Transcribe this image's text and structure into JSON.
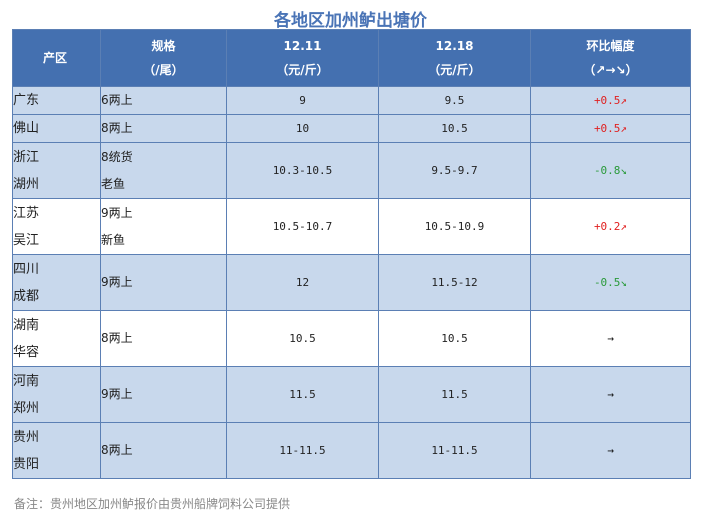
{
  "title": "各地区加州鲈出塘价",
  "header": {
    "region": "产区",
    "spec_line1": "规格",
    "spec_line2": "（/尾）",
    "date1_line1": "12.11",
    "date1_line2": "（元/斤）",
    "date2_line1": "12.18",
    "date2_line2": "（元/斤）",
    "change_line1": "环比幅度",
    "change_line2": "（↗→↘）"
  },
  "rows": [
    {
      "r1": "广东",
      "spec": "6两上",
      "p1": "9",
      "p2": "9.5",
      "chg": "+0.5↗"
    },
    {
      "r2": "佛山",
      "spec": "8两上",
      "p1": "10",
      "p2": "10.5",
      "chg": "+0.5↗"
    },
    {
      "r1": "浙江",
      "r2": "湖州",
      "spec1": "8统货",
      "spec2": "老鱼",
      "p1": "10.3-10.5",
      "p2": "9.5-9.7",
      "chg": "-0.8↘"
    },
    {
      "r1": "江苏",
      "r2": "吴江",
      "spec1": "9两上",
      "spec2": "新鱼",
      "p1": "10.5-10.7",
      "p2": "10.5-10.9",
      "chg": "+0.2↗"
    },
    {
      "r1": "四川",
      "r2": "成都",
      "spec": "9两上",
      "p1": "12",
      "p2": "11.5-12",
      "chg": "-0.5↘"
    },
    {
      "r1": "湖南",
      "r2": "华容",
      "spec": "8两上",
      "p1": "10.5",
      "p2": "10.5",
      "chg": "→"
    },
    {
      "r1": "河南",
      "r2": "郑州",
      "spec": "9两上",
      "p1": "11.5",
      "p2": "11.5",
      "chg": "→"
    },
    {
      "r1": "贵州",
      "r2": "贵阳",
      "spec": "8两上",
      "p1": "11-11.5",
      "p2": "11-11.5",
      "chg": "→"
    }
  ],
  "note": "备注：贵州地区加州鲈报价由贵州船牌饲料公司提供",
  "colors": {
    "header": "#4470b0",
    "shade": "#c8d8ec",
    "title": "#4a74b6",
    "up": "#e02020",
    "down": "#2a9a3a"
  }
}
